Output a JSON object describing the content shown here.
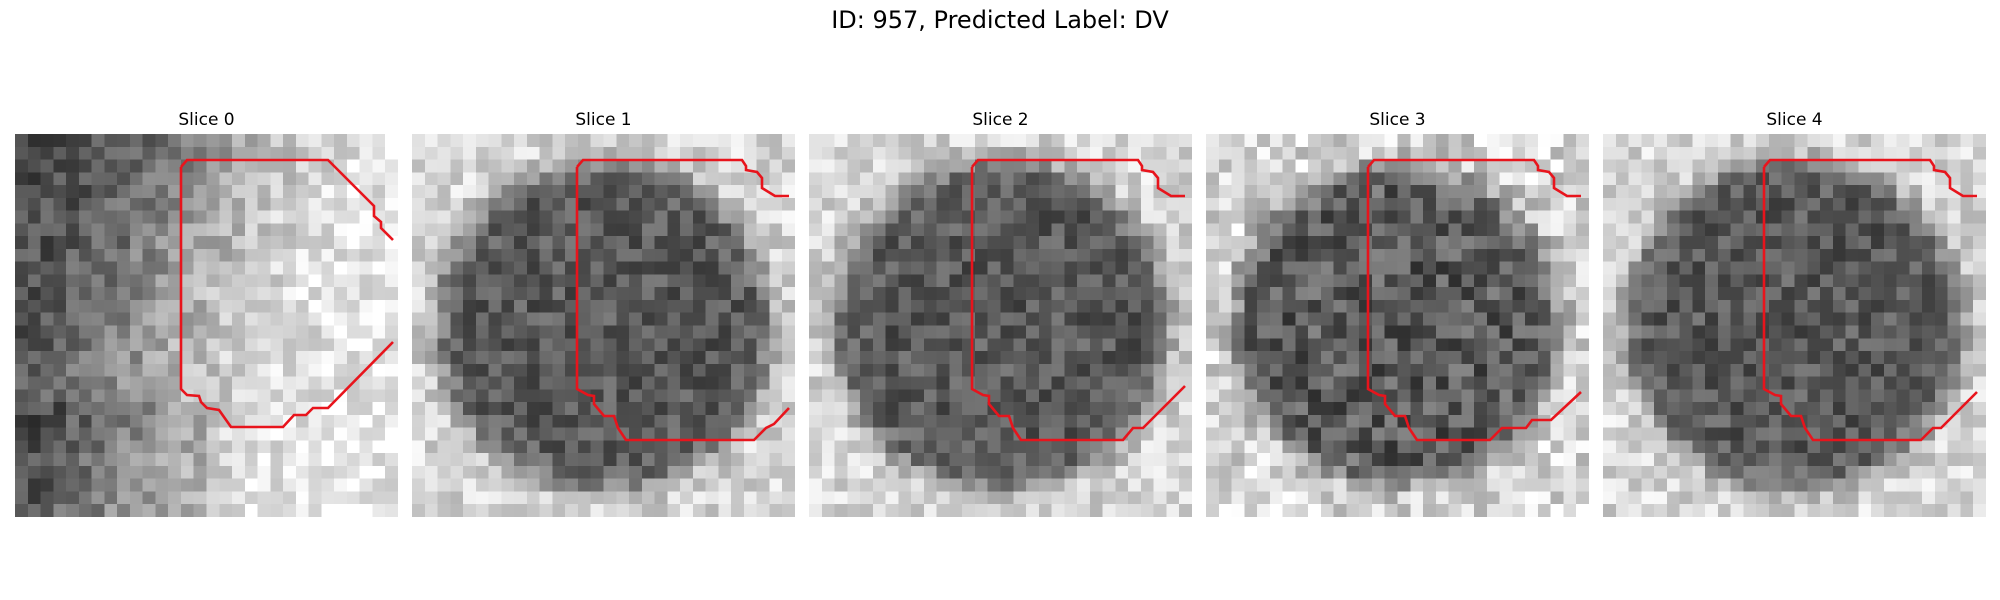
{
  "figure": {
    "title": "ID: 957, Predicted Label: DV"
  },
  "slices": [
    {
      "label": "Slice 0",
      "pattern": "left-dark-edge"
    },
    {
      "label": "Slice 1",
      "pattern": "dark-circle"
    },
    {
      "label": "Slice 2",
      "pattern": "dark-circle"
    },
    {
      "label": "Slice 3",
      "pattern": "dark-circle-noisy"
    },
    {
      "label": "Slice 4",
      "pattern": "dark-circle"
    }
  ],
  "overlay": {
    "contour_color": "#e8141c",
    "image_colormap": "gray"
  }
}
